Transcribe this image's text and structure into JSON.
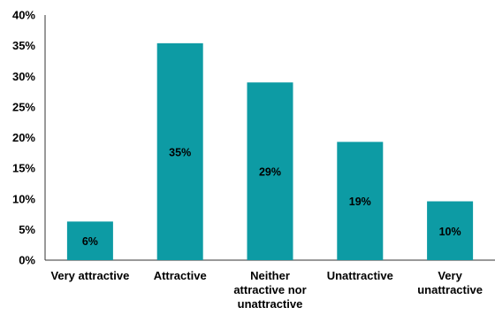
{
  "chart_data": {
    "type": "bar",
    "categories": [
      [
        "Very attractive"
      ],
      [
        "Attractive"
      ],
      [
        "Neither",
        "attractive nor",
        "unattractive"
      ],
      [
        "Unattractive"
      ],
      [
        "Very",
        "unattractive"
      ]
    ],
    "values": [
      6,
      35,
      29,
      19,
      10
    ],
    "value_suffix": "%",
    "plotted_values": [
      6.3,
      35.4,
      29.0,
      19.3,
      9.6
    ],
    "ylim": [
      0,
      40
    ],
    "yticks": [
      0,
      5,
      10,
      15,
      20,
      25,
      30,
      35,
      40
    ],
    "ytick_labels": [
      "0%",
      "5%",
      "10%",
      "15%",
      "20%",
      "25%",
      "30%",
      "35%",
      "40%"
    ],
    "title": "",
    "xlabel": "",
    "ylabel": "",
    "grid": false,
    "legend": "none",
    "colors": {
      "bar": "#0d9ba4",
      "axis": "#333333",
      "text": "#000000"
    }
  }
}
